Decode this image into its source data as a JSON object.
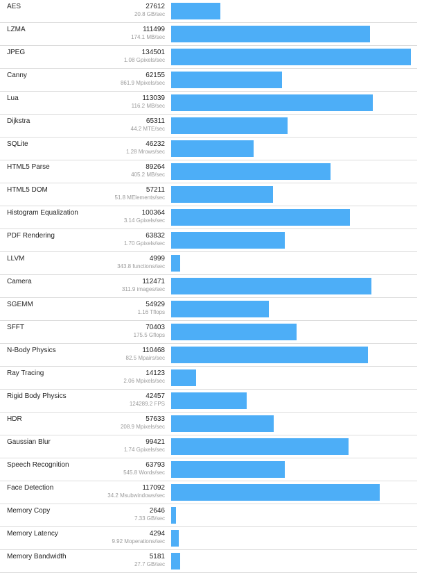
{
  "chart_data": {
    "type": "bar",
    "orientation": "horizontal",
    "title": "",
    "xlabel": "",
    "ylabel": "",
    "xlim": [
      0,
      134501
    ],
    "bar_color": "#4daef7",
    "rows": [
      {
        "name": "AES",
        "score": "27612",
        "rate": "20.8 GB/sec"
      },
      {
        "name": "LZMA",
        "score": "111499",
        "rate": "174.1 MB/sec"
      },
      {
        "name": "JPEG",
        "score": "134501",
        "rate": "1.08 Gpixels/sec"
      },
      {
        "name": "Canny",
        "score": "62155",
        "rate": "861.9 Mpixels/sec"
      },
      {
        "name": "Lua",
        "score": "113039",
        "rate": "116.2 MB/sec"
      },
      {
        "name": "Dijkstra",
        "score": "65311",
        "rate": "44.2 MTE/sec"
      },
      {
        "name": "SQLite",
        "score": "46232",
        "rate": "1.28 Mrows/sec"
      },
      {
        "name": "HTML5 Parse",
        "score": "89264",
        "rate": "405.2 MB/sec"
      },
      {
        "name": "HTML5 DOM",
        "score": "57211",
        "rate": "51.8 MElements/sec"
      },
      {
        "name": "Histogram Equalization",
        "score": "100364",
        "rate": "3.14 Gpixels/sec"
      },
      {
        "name": "PDF Rendering",
        "score": "63832",
        "rate": "1.70 Gpixels/sec"
      },
      {
        "name": "LLVM",
        "score": "4999",
        "rate": "343.8 functions/sec"
      },
      {
        "name": "Camera",
        "score": "112471",
        "rate": "311.9 images/sec"
      },
      {
        "name": "SGEMM",
        "score": "54929",
        "rate": "1.16 Tflops"
      },
      {
        "name": "SFFT",
        "score": "70403",
        "rate": "175.5 Gflops"
      },
      {
        "name": "N-Body Physics",
        "score": "110468",
        "rate": "82.5 Mpairs/sec"
      },
      {
        "name": "Ray Tracing",
        "score": "14123",
        "rate": "2.06 Mpixels/sec"
      },
      {
        "name": "Rigid Body Physics",
        "score": "42457",
        "rate": "124289.2 FPS"
      },
      {
        "name": "HDR",
        "score": "57633",
        "rate": "208.9 Mpixels/sec"
      },
      {
        "name": "Gaussian Blur",
        "score": "99421",
        "rate": "1.74 Gpixels/sec"
      },
      {
        "name": "Speech Recognition",
        "score": "63793",
        "rate": "545.8 Words/sec"
      },
      {
        "name": "Face Detection",
        "score": "117092",
        "rate": "34.2 Msubwindows/sec"
      },
      {
        "name": "Memory Copy",
        "score": "2646",
        "rate": "7.33 GB/sec"
      },
      {
        "name": "Memory Latency",
        "score": "4294",
        "rate": "9.92 Moperations/sec"
      },
      {
        "name": "Memory Bandwidth",
        "score": "5181",
        "rate": "27.7 GB/sec"
      }
    ]
  }
}
